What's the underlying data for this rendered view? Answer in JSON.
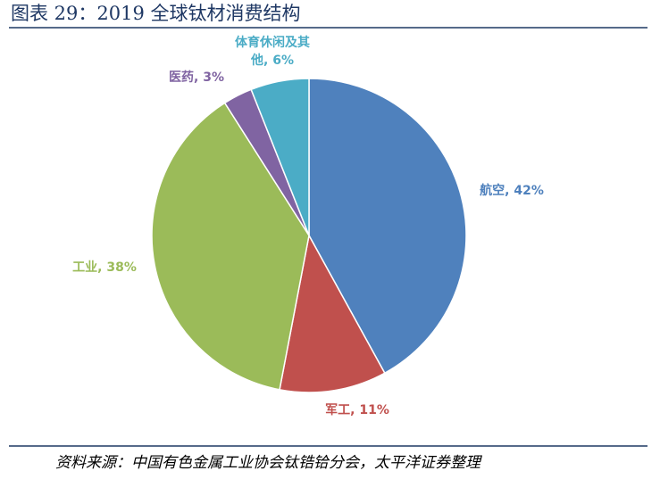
{
  "chart_data": {
    "type": "pie",
    "title": "图表 29：2019 全球钛材消费结构",
    "values": [
      42,
      11,
      38,
      3,
      6
    ],
    "value_labels": [
      "航空, 42%",
      "军工, 11%",
      "工业, 38%",
      "医药, 3%",
      "体育休闲及其他, 6%"
    ],
    "colors": [
      "#4f81bd",
      "#c0504d",
      "#9bbb59",
      "#8064a2",
      "#4bacc6"
    ],
    "source": "资料来源：中国有色金属工业协会钛锆铪分会，太平洋证券整理"
  }
}
